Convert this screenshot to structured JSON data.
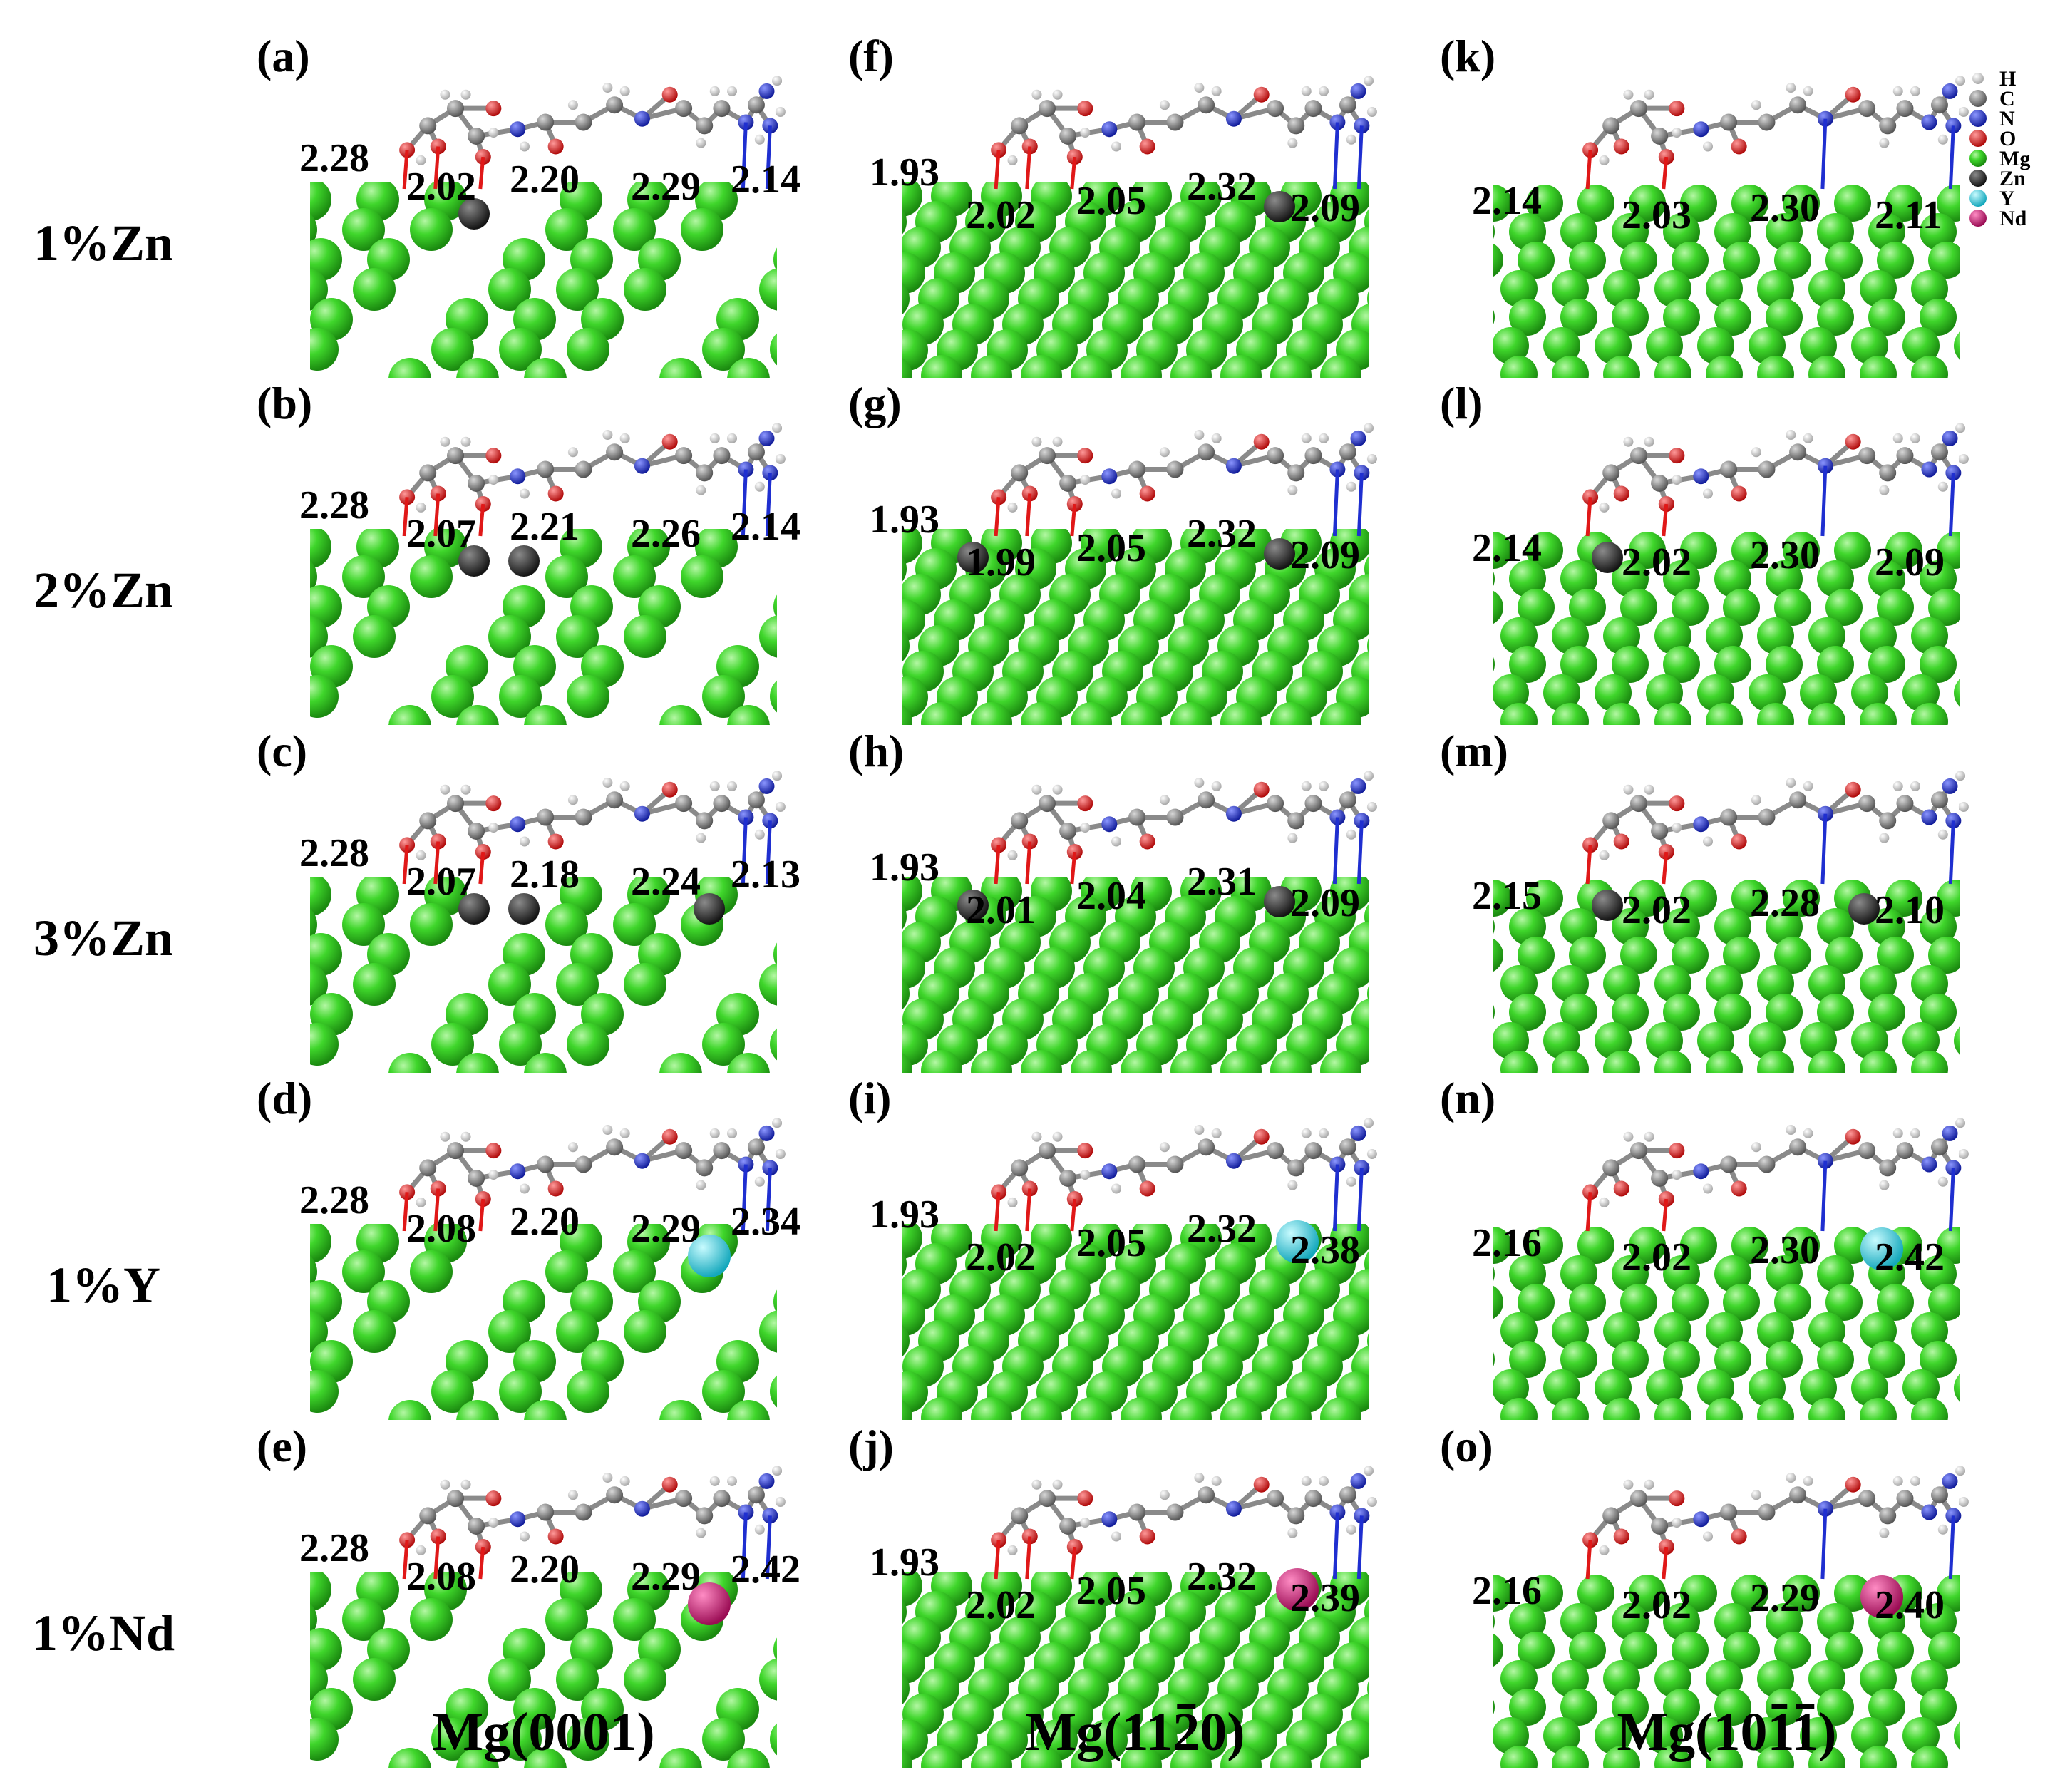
{
  "rows": [
    "1%Zn",
    "2%Zn",
    "3%Zn",
    "1%Y",
    "1%Nd"
  ],
  "columns": [
    {
      "prefix": "Mg(",
      "plain": "0001",
      "digits": [],
      "suffix": ")"
    },
    {
      "prefix": "Mg(",
      "plain": "",
      "digits": [
        "1",
        "1",
        "2",
        "0"
      ],
      "bar": [
        false,
        false,
        true,
        false
      ],
      "suffix": ")"
    },
    {
      "prefix": "Mg(",
      "plain": "",
      "digits": [
        "1",
        "0",
        "1",
        "1"
      ],
      "bar": [
        false,
        false,
        true,
        true
      ],
      "suffix": ")"
    }
  ],
  "panels": [
    {
      "letter": "(a)",
      "surface": "0001",
      "dopant": "Zn",
      "dopant_count": 1,
      "dopant_site": "below",
      "distances": [
        "2.28",
        "2.02",
        "2.20",
        "2.29",
        "2.14"
      ]
    },
    {
      "letter": "(b)",
      "surface": "0001",
      "dopant": "Zn",
      "dopant_count": 2,
      "dopant_site": "below",
      "distances": [
        "2.28",
        "2.07",
        "2.21",
        "2.26",
        "2.14"
      ]
    },
    {
      "letter": "(c)",
      "surface": "0001",
      "dopant": "Zn",
      "dopant_count": 3,
      "dopant_site": "below",
      "distances": [
        "2.28",
        "2.07",
        "2.18",
        "2.24",
        "2.13"
      ]
    },
    {
      "letter": "(d)",
      "surface": "0001",
      "dopant": "Y",
      "dopant_count": 1,
      "dopant_site": "surface",
      "distances": [
        "2.28",
        "2.08",
        "2.20",
        "2.29",
        "2.34"
      ]
    },
    {
      "letter": "(e)",
      "surface": "0001",
      "dopant": "Nd",
      "dopant_count": 1,
      "dopant_site": "surface",
      "distances": [
        "2.28",
        "2.08",
        "2.20",
        "2.29",
        "2.42"
      ]
    },
    {
      "letter": "(f)",
      "surface": "11-20",
      "dopant": "Zn",
      "dopant_count": 1,
      "dopant_site": "surface",
      "distances": [
        "1.93",
        "2.02",
        "2.05",
        "2.32",
        "2.09"
      ]
    },
    {
      "letter": "(g)",
      "surface": "11-20",
      "dopant": "Zn",
      "dopant_count": 2,
      "dopant_site": "surface",
      "distances": [
        "1.93",
        "1.99",
        "2.05",
        "2.32",
        "2.09"
      ]
    },
    {
      "letter": "(h)",
      "surface": "11-20",
      "dopant": "Zn",
      "dopant_count": 3,
      "dopant_site": "surface",
      "distances": [
        "1.93",
        "2.01",
        "2.04",
        "2.31",
        "2.09"
      ]
    },
    {
      "letter": "(i)",
      "surface": "11-20",
      "dopant": "Y",
      "dopant_count": 1,
      "dopant_site": "surface",
      "distances": [
        "1.93",
        "2.02",
        "2.05",
        "2.32",
        "2.38"
      ]
    },
    {
      "letter": "(j)",
      "surface": "11-20",
      "dopant": "Nd",
      "dopant_count": 1,
      "dopant_site": "surface",
      "distances": [
        "1.93",
        "2.02",
        "2.05",
        "2.32",
        "2.39"
      ]
    },
    {
      "letter": "(k)",
      "surface": "10-11",
      "dopant": "Zn",
      "dopant_count": 1,
      "dopant_site": "hidden",
      "distances": [
        "2.14",
        "2.03",
        "2.30",
        "2.11"
      ]
    },
    {
      "letter": "(l)",
      "surface": "10-11",
      "dopant": "Zn",
      "dopant_count": 2,
      "dopant_site": "surface",
      "distances": [
        "2.14",
        "2.02",
        "2.30",
        "2.09"
      ]
    },
    {
      "letter": "(m)",
      "surface": "10-11",
      "dopant": "Zn",
      "dopant_count": 3,
      "dopant_site": "surface",
      "distances": [
        "2.15",
        "2.02",
        "2.28",
        "2.10"
      ]
    },
    {
      "letter": "(n)",
      "surface": "10-11",
      "dopant": "Y",
      "dopant_count": 1,
      "dopant_site": "surface",
      "distances": [
        "2.16",
        "2.02",
        "2.30",
        "2.42"
      ]
    },
    {
      "letter": "(o)",
      "surface": "10-11",
      "dopant": "Nd",
      "dopant_count": 1,
      "dopant_site": "surface",
      "distances": [
        "2.16",
        "2.02",
        "2.29",
        "2.40"
      ]
    }
  ],
  "legend": [
    {
      "label": "H",
      "color": "#e6e6e6"
    },
    {
      "label": "C",
      "color": "#7a7a7a"
    },
    {
      "label": "N",
      "color": "#1f2fd0"
    },
    {
      "label": "O",
      "color": "#e01818"
    },
    {
      "label": "Mg",
      "color": "#35cf23"
    },
    {
      "label": "Zn",
      "color": "#3a3a3a"
    },
    {
      "label": "Y",
      "color": "#3fd8e8"
    },
    {
      "label": "Nd",
      "color": "#d2207a"
    }
  ]
}
